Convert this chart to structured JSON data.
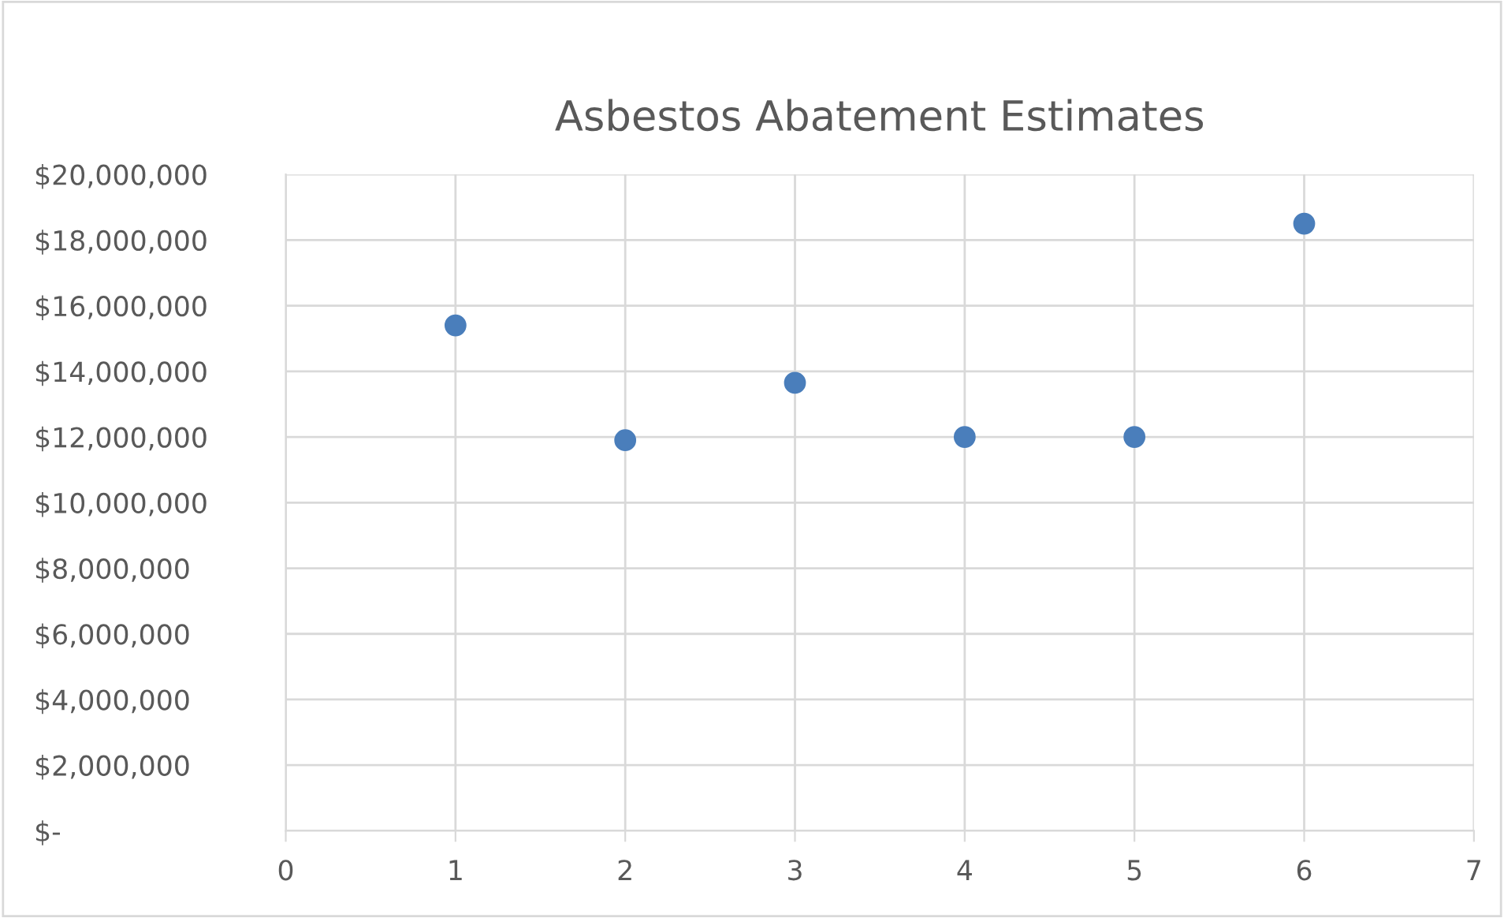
{
  "chart_data": {
    "type": "scatter",
    "title": "Asbestos Abatement Estimates",
    "x": [
      1,
      2,
      3,
      4,
      5,
      6
    ],
    "series": [
      {
        "color": "#4a7ebb",
        "values": [
          15400000,
          11900000,
          13650000,
          12000000,
          12000000,
          18500000
        ]
      }
    ],
    "xlim": [
      0,
      7
    ],
    "xticks": [
      0,
      1,
      2,
      3,
      4,
      5,
      6,
      7
    ],
    "ylim": [
      0,
      20000000
    ],
    "yticks": [
      {
        "value": 0,
        "label": "$-"
      },
      {
        "value": 2000000,
        "label": "$2,000,000"
      },
      {
        "value": 4000000,
        "label": "$4,000,000"
      },
      {
        "value": 6000000,
        "label": "$6,000,000"
      },
      {
        "value": 8000000,
        "label": "$8,000,000"
      },
      {
        "value": 10000000,
        "label": "$10,000,000"
      },
      {
        "value": 12000000,
        "label": "$12,000,000"
      },
      {
        "value": 14000000,
        "label": "$14,000,000"
      },
      {
        "value": 16000000,
        "label": "$16,000,000"
      },
      {
        "value": 18000000,
        "label": "$18,000,000"
      },
      {
        "value": 20000000,
        "label": "$20,000,000"
      }
    ],
    "grid": true,
    "marker": "circle"
  }
}
